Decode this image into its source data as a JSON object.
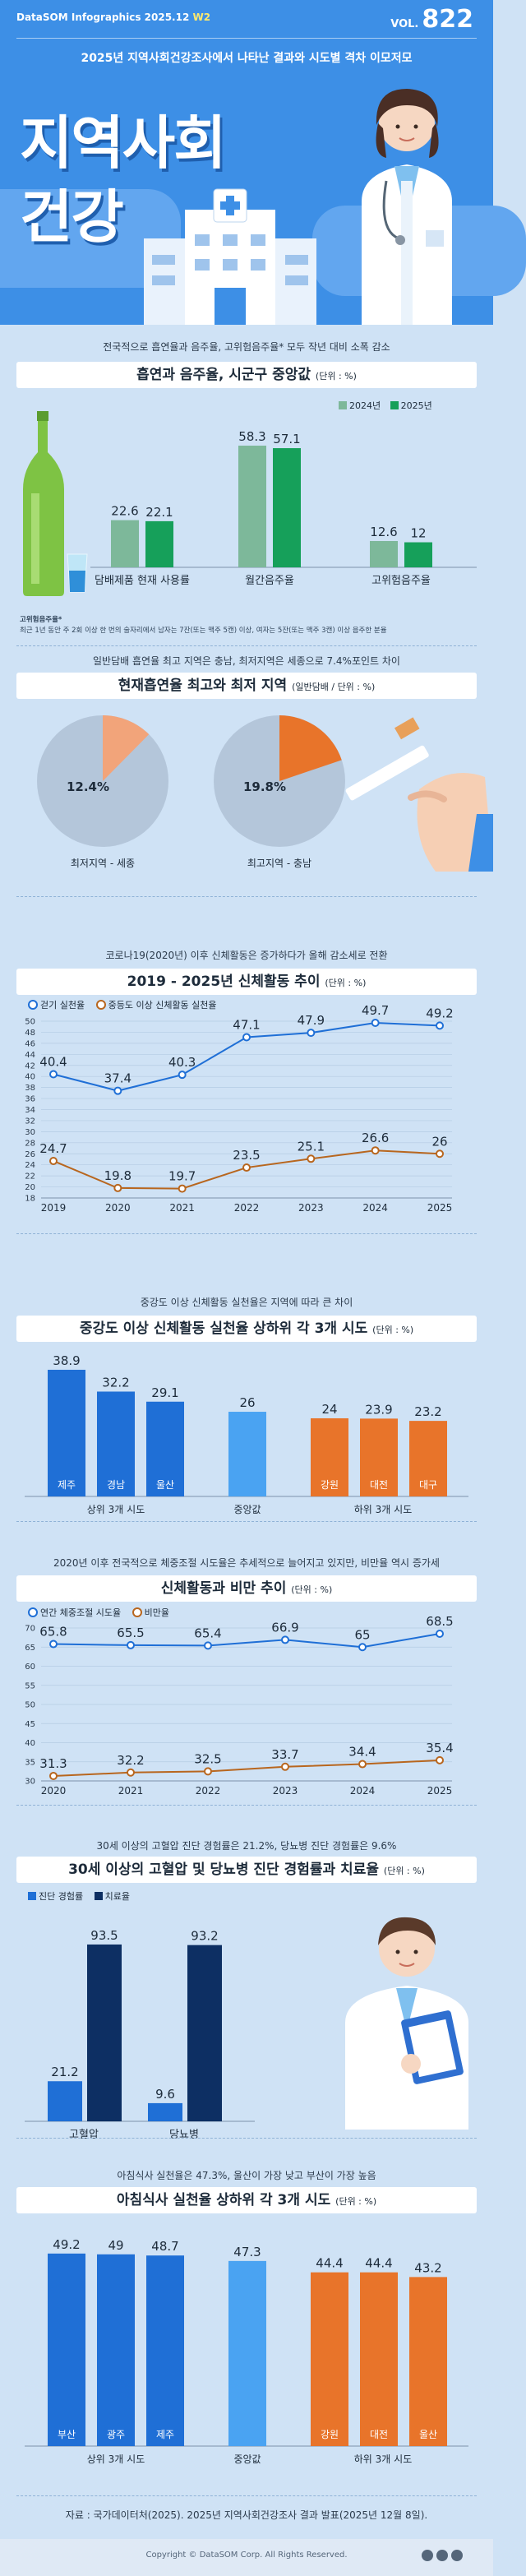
{
  "header": {
    "brand_prefix": "DataSOM",
    "brand_name": "Infographics",
    "brand_date": "2025.12",
    "brand_week": "W2",
    "vol_label": "VOL.",
    "vol_number": "822",
    "subtitle": "2025년 지역사회건강조사에서 나타난 결과와 시도별 격차 이모저모",
    "title_line1": "지역사회",
    "title_line2": "건강"
  },
  "sections": {
    "s1": {
      "lead": "전국적으로 흡연율과 음주율, 고위험음주율* 모두 작년 대비 소폭 감소",
      "title": "흡연과 음주율, 시군구 중앙값",
      "unit": "(단위 : %)",
      "note1": "고위험음주율*",
      "note2": "최근 1년 동안 주 2회 이상 한 번의 술자리에서 남자는 7잔(또는 맥주 5캔) 이상, 여자는 5잔(또는 맥주 3캔) 이상 음주한 분율"
    },
    "s2": {
      "lead": "일반담배 흡연율 최고 지역은 충남, 최저지역은 세종으로 7.4%포인트 차이",
      "title": "현재흡연율 최고와 최저 지역",
      "unit": "(일반담배 / 단위 : %)"
    },
    "s3": {
      "lead": "코로나19(2020년) 이후 신체활동은 증가하다가 올해 감소세로 전환",
      "title": "2019 - 2025년 신체활동 추이",
      "unit": "(단위 : %)"
    },
    "s4": {
      "lead": "중강도 이상 신체활동 실천율은 지역에 따라 큰 차이",
      "title": "중강도 이상 신체활동 실천율 상하위 각 3개 시도",
      "unit": "(단위 : %)"
    },
    "s5": {
      "lead": "2020년 이후 전국적으로 체중조절 시도율은 추세적으로 늘어지고 있지만, 비만율 역시 증가세",
      "title": "신체활동과 비만 추이",
      "unit": "(단위 : %)"
    },
    "s6": {
      "lead": "30세 이상의 고혈압 진단 경험률은 21.2%, 당뇨병 진단 경험률은 9.6%",
      "title": "30세 이상의 고혈압 및 당뇨병 진단 경험률과 치료율",
      "unit": "(단위 : %)"
    },
    "s7": {
      "lead": "아침식사 실천율은 47.3%, 울산이 가장 낮고 부산이 가장 높음",
      "title": "아침식사 실천율 상하위 각 3개 시도",
      "unit": "(단위 : %)"
    }
  },
  "group_labels": {
    "top3": "상위 3개 시도",
    "median": "중앙값",
    "bottom3": "하위 3개 시도"
  },
  "footer": {
    "source": "자료 : 국가데이터처(2025). 2025년 지역사회건강조사 결과 발표(2025년 12월 8일).",
    "copyright": "Copyright © DataSOM Corp. All Rights Reserved."
  },
  "colors": {
    "header_blue": "#3d8fe6",
    "bg": "#cfe2f5",
    "green_light": "#7db89a",
    "green": "#16a05a",
    "blue": "#1f6fd6",
    "blue_light": "#4aa3f2",
    "orange": "#e8742a",
    "brown": "#b8661e",
    "pie_grey": "#b4c6da",
    "pie_orange_light": "#f2a47a"
  },
  "chart_data": [
    {
      "id": "smoking_drinking",
      "type": "bar",
      "categories": [
        "담배제품 현재 사용률",
        "월간음주율",
        "고위험음주율"
      ],
      "series": [
        {
          "name": "2024년",
          "values": [
            22.6,
            58.3,
            12.6
          ]
        },
        {
          "name": "2025년",
          "values": [
            22.1,
            57.1,
            12.0
          ]
        }
      ],
      "value_labels": [
        [
          "22.6",
          "58.3",
          "12.6"
        ],
        [
          "22.1",
          "57.1",
          "12"
        ]
      ],
      "ylim": [
        0,
        65
      ]
    },
    {
      "id": "smoking_regions",
      "type": "pie",
      "slices": [
        {
          "label": "최저지역 - 세종",
          "value": 12.4,
          "value_label": "12.4%"
        },
        {
          "label": "최고지역 - 충남",
          "value": 19.8,
          "value_label": "19.8%"
        }
      ]
    },
    {
      "id": "physical_activity_trend",
      "type": "line",
      "x": [
        "2019",
        "2020",
        "2021",
        "2022",
        "2023",
        "2024",
        "2025"
      ],
      "series": [
        {
          "name": "걷기 실천율",
          "values": [
            40.4,
            37.4,
            40.3,
            47.1,
            47.9,
            49.7,
            49.2
          ],
          "value_labels": [
            "40.4",
            "37.4",
            "40.3",
            "47.1",
            "47.9",
            "49.7",
            "49.2"
          ]
        },
        {
          "name": "중등도 이상 신체활동 실천율",
          "values": [
            24.7,
            19.8,
            19.7,
            23.5,
            25.1,
            26.6,
            26.0
          ],
          "value_labels": [
            "24.7",
            "19.8",
            "19.7",
            "23.5",
            "25.1",
            "26.6",
            "26"
          ]
        }
      ],
      "yticks": [
        "18",
        "20",
        "22",
        "24",
        "26",
        "28",
        "30",
        "32",
        "34",
        "36",
        "38",
        "40",
        "42",
        "44",
        "46",
        "48",
        "50"
      ],
      "ylim": [
        18,
        50
      ]
    },
    {
      "id": "moderate_activity_regions",
      "type": "bar",
      "categories": [
        "제주",
        "경남",
        "울산",
        "중앙값",
        "강원",
        "대전",
        "대구"
      ],
      "values": [
        38.9,
        32.2,
        29.1,
        26.0,
        24.0,
        23.9,
        23.2
      ],
      "value_labels": [
        "38.9",
        "32.2",
        "29.1",
        "26",
        "24",
        "23.9",
        "23.2"
      ],
      "ylim": [
        0,
        40
      ]
    },
    {
      "id": "weight_obesity_trend",
      "type": "line",
      "x": [
        "2020",
        "2021",
        "2022",
        "2023",
        "2024",
        "2025"
      ],
      "series": [
        {
          "name": "연간 체중조절 시도율",
          "values": [
            65.8,
            65.5,
            65.4,
            66.9,
            65.0,
            68.5
          ],
          "value_labels": [
            "65.8",
            "65.5",
            "65.4",
            "66.9",
            "65",
            "68.5"
          ]
        },
        {
          "name": "비만율",
          "values": [
            31.3,
            32.2,
            32.5,
            33.7,
            34.4,
            35.4
          ],
          "value_labels": [
            "31.3",
            "32.2",
            "32.5",
            "33.7",
            "34.4",
            "35.4"
          ]
        }
      ],
      "yticks": [
        "30",
        "35",
        "40",
        "45",
        "50",
        "55",
        "60",
        "65",
        "70"
      ],
      "ylim": [
        30,
        70
      ]
    },
    {
      "id": "hypertension_diabetes",
      "type": "bar",
      "categories": [
        "고혈압",
        "당뇨병"
      ],
      "series": [
        {
          "name": "진단 경험률",
          "values": [
            21.2,
            9.6
          ]
        },
        {
          "name": "치료율",
          "values": [
            93.5,
            93.2
          ]
        }
      ],
      "value_labels": [
        [
          "21.2",
          "9.6"
        ],
        [
          "93.5",
          "93.2"
        ]
      ],
      "ylim": [
        0,
        100
      ]
    },
    {
      "id": "breakfast_regions",
      "type": "bar",
      "categories": [
        "부산",
        "광주",
        "제주",
        "중앙값",
        "강원",
        "대전",
        "울산"
      ],
      "values": [
        49.2,
        49.0,
        48.7,
        47.3,
        44.4,
        44.4,
        43.2
      ],
      "value_labels": [
        "49.2",
        "49",
        "48.7",
        "47.3",
        "44.4",
        "44.4",
        "43.2"
      ],
      "ylim": [
        0,
        52
      ]
    }
  ]
}
